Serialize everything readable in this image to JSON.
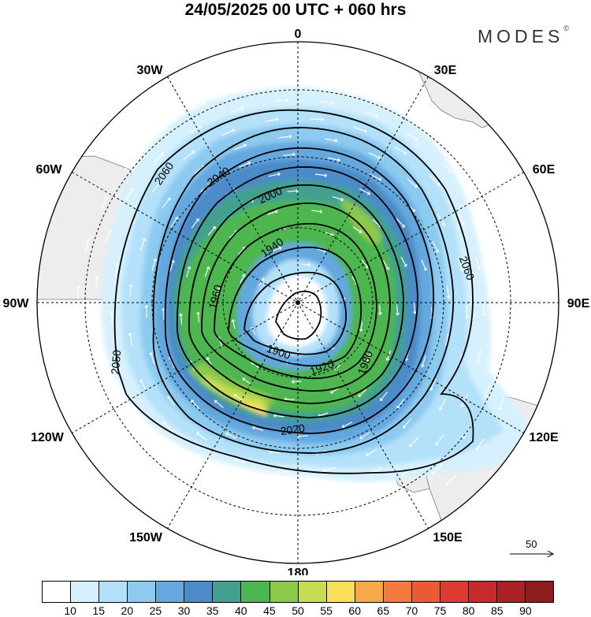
{
  "header": {
    "title": "24/05/2025  00 UTC  + 060 hrs",
    "brand": "MODES",
    "brand_mark": "©"
  },
  "map": {
    "projection": "south-polar-stereographic",
    "longitude_labels": [
      "0",
      "30E",
      "60E",
      "90E",
      "120E",
      "150E",
      "180",
      "150W",
      "120W",
      "90W",
      "60W",
      "30W"
    ],
    "contour_labels": [
      "2060",
      "2040",
      "2000",
      "1940",
      "1960",
      "1900",
      "1920",
      "1980",
      "2020",
      "2050",
      "2060"
    ],
    "land_color": "#ededed",
    "wind_vector_color": "#ffffff",
    "contour_color": "#000000"
  },
  "reference_vector": {
    "label": "50"
  },
  "colorbar": {
    "tick_labels": [
      "10",
      "15",
      "20",
      "25",
      "30",
      "35",
      "40",
      "45",
      "50",
      "55",
      "60",
      "65",
      "70",
      "75",
      "80",
      "85",
      "90"
    ],
    "colors": [
      "#ffffff",
      "#d6f1fd",
      "#b4e1fa",
      "#8ccaf0",
      "#64a8de",
      "#4b8bc8",
      "#43a091",
      "#4db650",
      "#8cc84a",
      "#c6dc52",
      "#f9e05a",
      "#f7a94a",
      "#f27a3c",
      "#ea5a34",
      "#dd3a30",
      "#c62a2c",
      "#a82224",
      "#8c1c1e"
    ]
  }
}
